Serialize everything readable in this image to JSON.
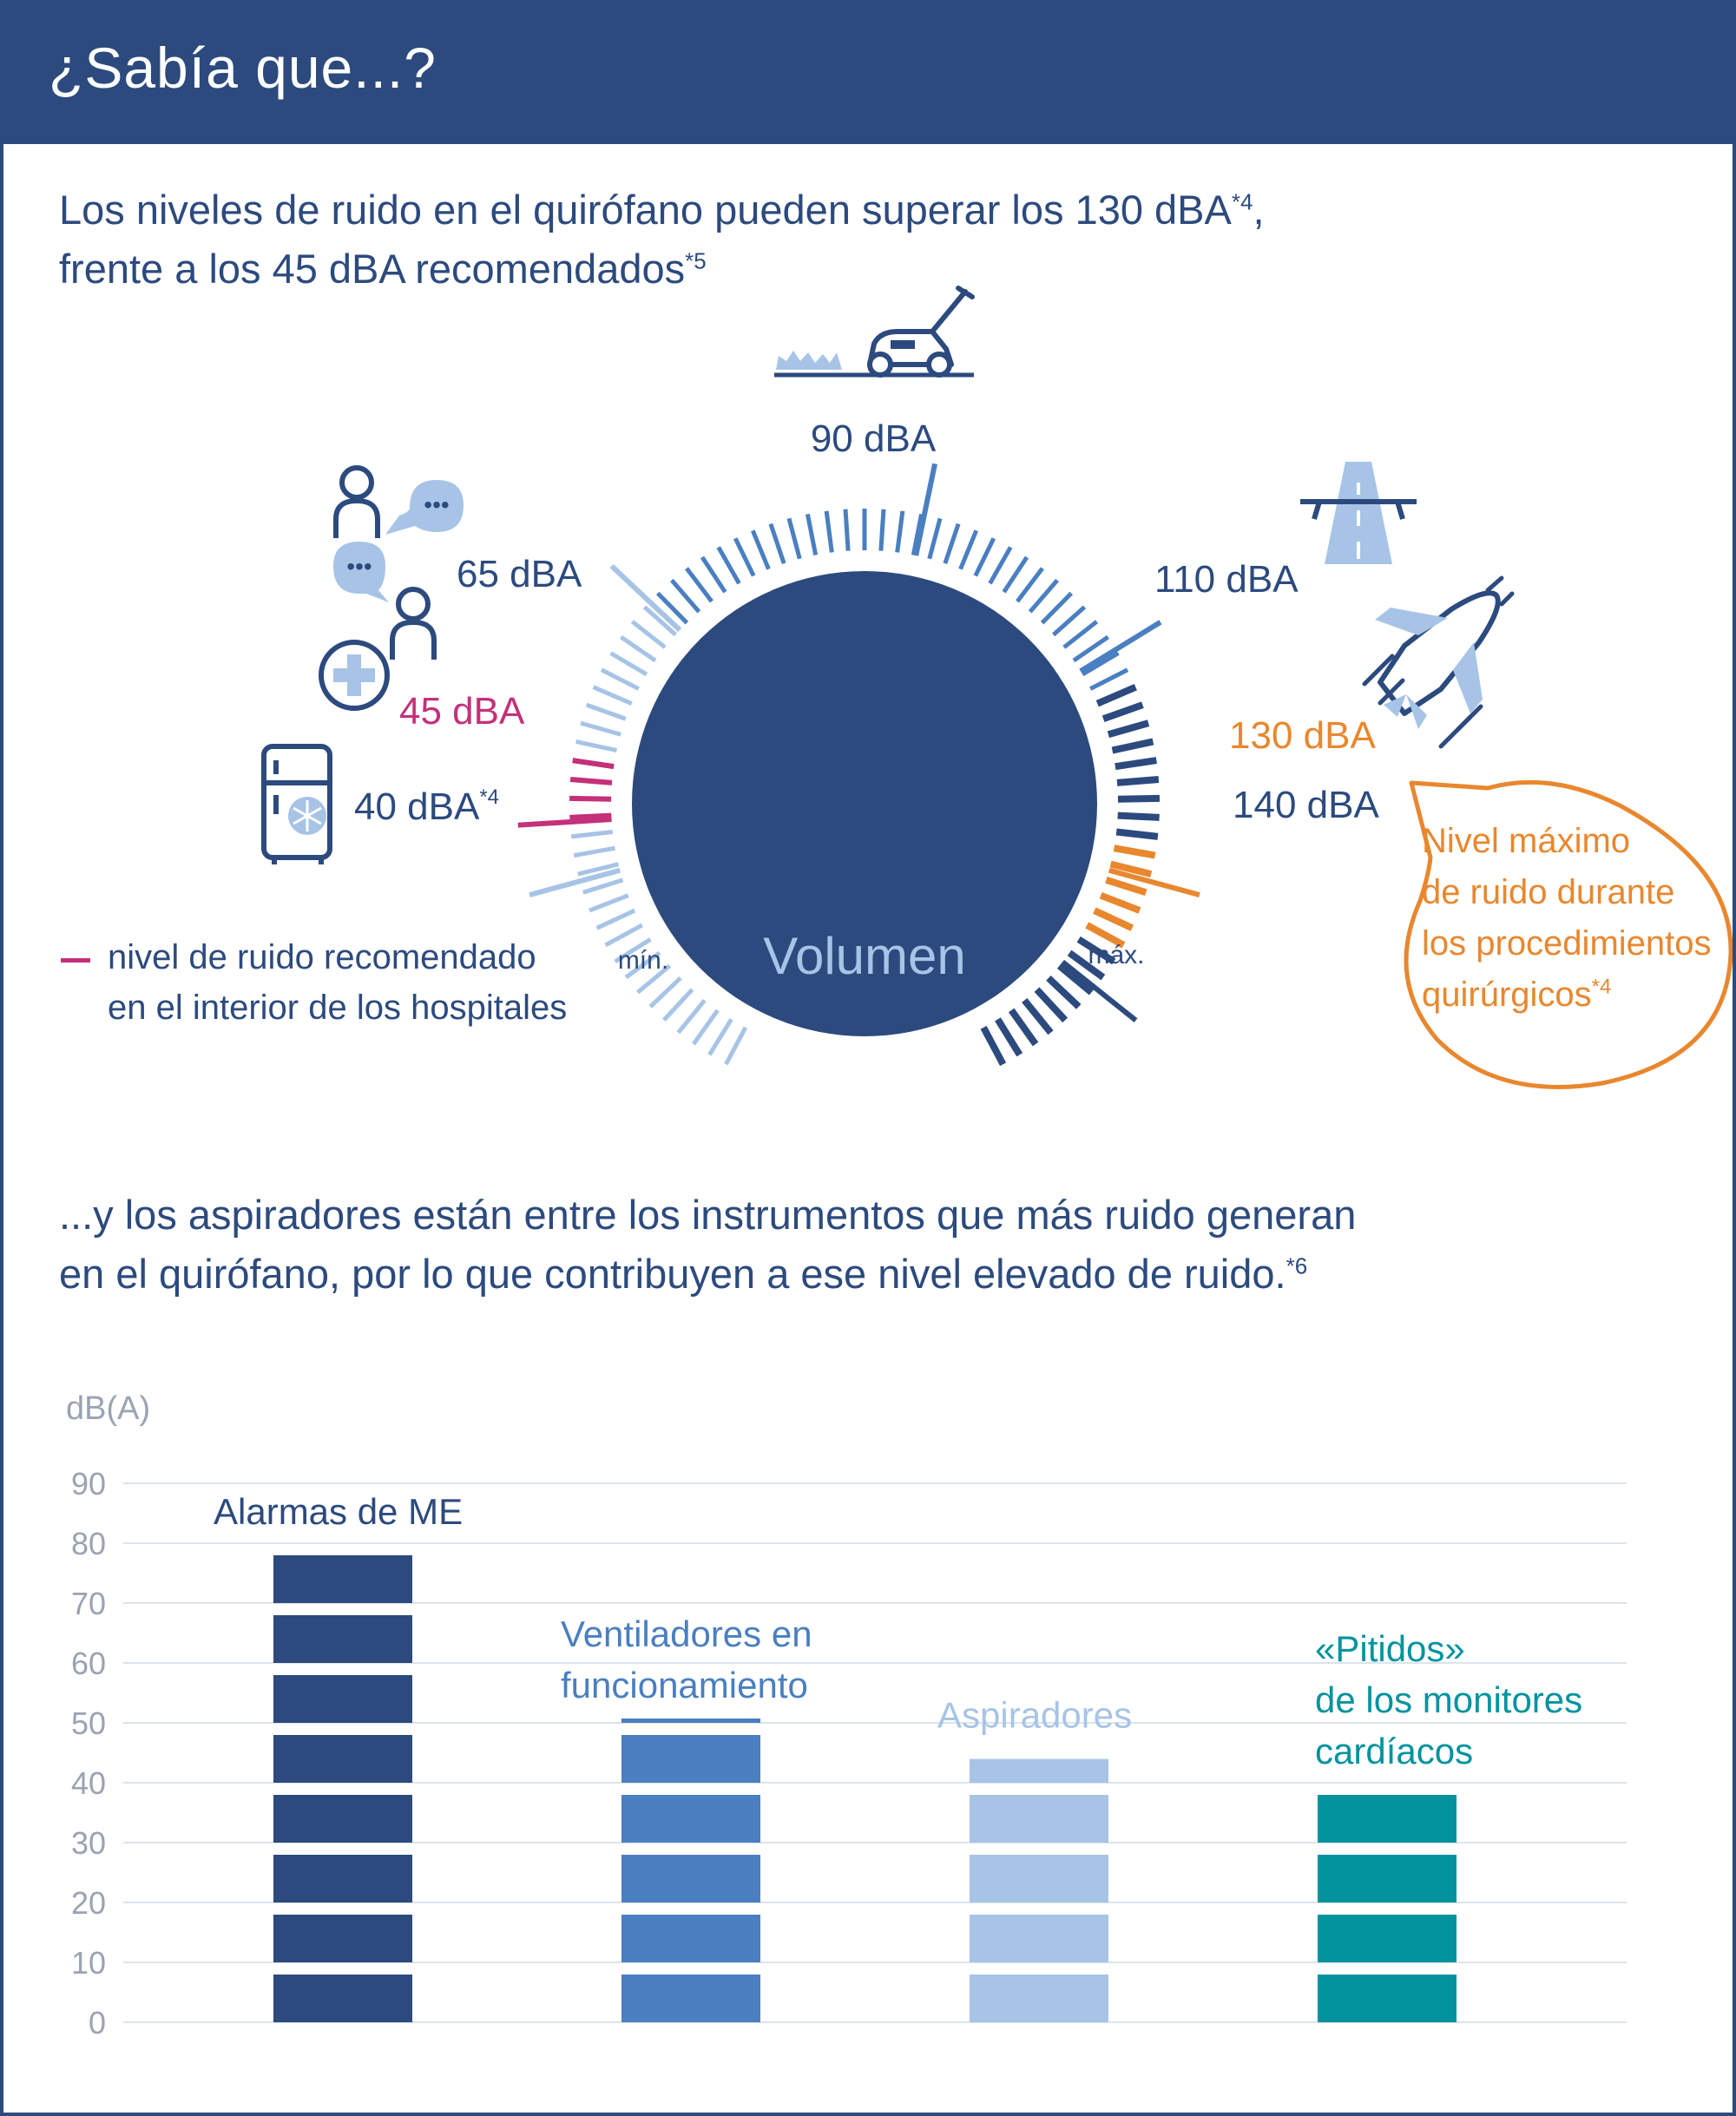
{
  "header": {
    "title": "¿Sabía que...?"
  },
  "intro": {
    "part1": "Los niveles de ruido en el quirófano pueden superar los 130 dBA",
    "part1_ref": "*4",
    "part1_tail": ",",
    "part2": "frente a los 45 dBA recomendados",
    "part2_ref": "*5"
  },
  "gauge": {
    "knob_label": "Volumen",
    "min_label": "mín.",
    "max_label": "máx.",
    "levels": [
      {
        "value": 40,
        "label": "40 dBA",
        "ref": "*4",
        "icon": "refrigerator-icon"
      },
      {
        "value": 45,
        "label": "45 dBA",
        "ref": "",
        "icon": "hospital-icon"
      },
      {
        "value": 65,
        "label": "65 dBA",
        "ref": "",
        "icon": "conversation-icon"
      },
      {
        "value": 90,
        "label": "90 dBA",
        "ref": "",
        "icon": "lawnmower-icon"
      },
      {
        "value": 110,
        "label": "110 dBA",
        "ref": "",
        "icon": "highway-icon"
      },
      {
        "value": 130,
        "label": "130 dBA",
        "ref": "",
        "icon": "airplane-icon"
      },
      {
        "value": 140,
        "label": "140 dBA",
        "ref": "",
        "icon": ""
      }
    ],
    "colors": {
      "light": "#a7c4e6",
      "medium": "#4a7fc1",
      "dark": "#2c4a7e",
      "pink": "#c4307a",
      "orange": "#e9872e"
    }
  },
  "legend": {
    "line1": "nivel de ruido recomendado",
    "line2": "en el interior de los hospitales"
  },
  "bubble": {
    "line1": "Nivel máximo",
    "line2": "de ruido durante",
    "line3": "los procedimientos",
    "line4": "quirúrgicos",
    "ref": "*4"
  },
  "second_intro": {
    "line1": "...y los aspiradores están entre los instrumentos que más ruido generan",
    "line2": "en el quirófano, por lo que contribuyen a ese nivel elevado de ruido.",
    "ref": "*6"
  },
  "chart_data": {
    "type": "bar",
    "ylabel": "dB(A)",
    "ylim": [
      0,
      90
    ],
    "yticks": [
      0,
      10,
      20,
      30,
      40,
      50,
      60,
      70,
      80,
      90
    ],
    "grid": true,
    "categories": [
      "Alarmas de ME",
      "Ventiladores en funcionamiento",
      "Aspiradores",
      "«Pitidos» de los monitores cardíacos"
    ],
    "category_lines": [
      [
        "Alarmas de ME"
      ],
      [
        "Ventiladores en",
        "funcionamiento"
      ],
      [
        "Aspiradores"
      ],
      [
        "«Pitidos»",
        "de los monitores",
        "cardíacos"
      ]
    ],
    "values": [
      80,
      51,
      46,
      40
    ],
    "colors": [
      "#2c4a7e",
      "#4a7fc1",
      "#a7c4e6",
      "#00939e"
    ]
  }
}
